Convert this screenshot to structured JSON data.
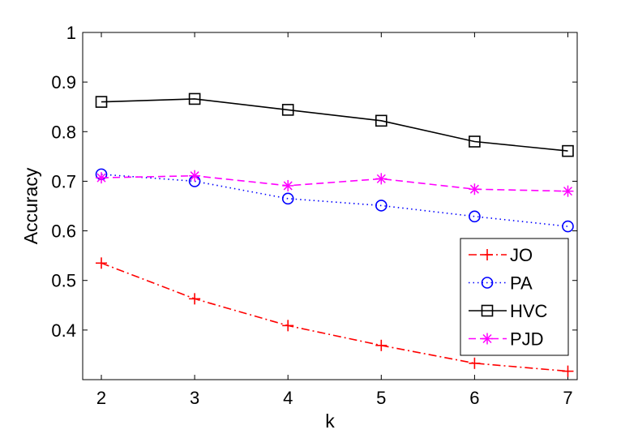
{
  "chart_data": {
    "type": "line",
    "xlabel": "k",
    "ylabel": "Accuracy",
    "xlim": [
      1.8,
      7.1
    ],
    "ylim": [
      0.3,
      1.0
    ],
    "xticks": [
      2,
      3,
      4,
      5,
      6,
      7
    ],
    "yticks": [
      0.4,
      0.5,
      0.6,
      0.7,
      0.8,
      0.9,
      1
    ],
    "xtick_labels": [
      "2",
      "3",
      "4",
      "5",
      "6",
      "7"
    ],
    "ytick_labels": [
      "0.4",
      "0.5",
      "0.6",
      "0.7",
      "0.8",
      "0.9",
      "1"
    ],
    "grid": false,
    "legend_position": "lower-right",
    "x": [
      2,
      3,
      4,
      5,
      6,
      7
    ],
    "series": [
      {
        "name": "JO",
        "values": [
          0.535,
          0.463,
          0.409,
          0.369,
          0.333,
          0.317
        ],
        "color": "#ff0000",
        "dash": "dashdot",
        "marker": "plus"
      },
      {
        "name": "PA",
        "values": [
          0.714,
          0.7,
          0.665,
          0.651,
          0.629,
          0.609
        ],
        "color": "#0000ff",
        "dash": "dotted",
        "marker": "circle"
      },
      {
        "name": "HVC",
        "values": [
          0.86,
          0.866,
          0.844,
          0.822,
          0.78,
          0.761
        ],
        "color": "#000000",
        "dash": "solid",
        "marker": "square"
      },
      {
        "name": "PJD",
        "values": [
          0.707,
          0.711,
          0.691,
          0.705,
          0.684,
          0.68
        ],
        "color": "#ff00ff",
        "dash": "dashed",
        "marker": "star"
      }
    ]
  }
}
